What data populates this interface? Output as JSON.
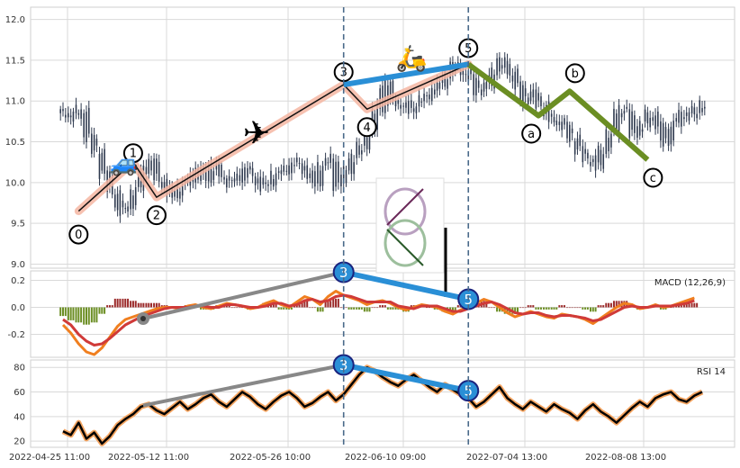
{
  "chart_data": {
    "type": "line",
    "x_tick_labels": [
      "2022-04-25 11:00",
      "2022-05-12 11:00",
      "2022-05-26 10:00",
      "2022-06-10 09:00",
      "2022-07-04 13:00",
      "2022-08-08 13:00"
    ],
    "panels": [
      {
        "name": "price",
        "chart_kind": "candlestick",
        "ylim": [
          8.95,
          12.15
        ],
        "y_ticks": [
          "9.0",
          "9.5",
          "10.0",
          "10.5",
          "11.0",
          "11.5",
          "12.0"
        ],
        "close_series": [
          10.85,
          10.8,
          10.9,
          10.55,
          10.4,
          10.1,
          9.9,
          9.65,
          9.72,
          9.9,
          10.15,
          10.25,
          10.05,
          9.9,
          9.85,
          9.95,
          10.05,
          10.15,
          10.05,
          10.2,
          10.1,
          10.0,
          10.05,
          10.15,
          10.1,
          9.95,
          10.0,
          10.1,
          10.15,
          10.2,
          10.25,
          10.1,
          10.0,
          10.2,
          10.3,
          9.95,
          10.15,
          10.3,
          10.45,
          10.6,
          10.9,
          11.2,
          11.0,
          10.95,
          10.9,
          10.95,
          11.05,
          11.1,
          11.2,
          11.3,
          11.45,
          11.35,
          11.3,
          11.1,
          11.2,
          11.35,
          11.5,
          11.35,
          11.2,
          11.0,
          11.1,
          10.95,
          10.8,
          10.75,
          10.7,
          10.55,
          10.4,
          10.3,
          10.2,
          10.4,
          10.6,
          10.9,
          10.85,
          10.6,
          10.7,
          10.85,
          10.7,
          10.5,
          10.7,
          10.85,
          10.8,
          10.9,
          10.95
        ]
      },
      {
        "name": "MACD (12,26,9)",
        "label": "MACD (12,26,9)",
        "ylim": [
          -0.37,
          0.27
        ],
        "y_ticks": [
          "0.2",
          "0.0",
          "-0.2"
        ],
        "macd": [
          -0.13,
          -0.19,
          -0.27,
          -0.33,
          -0.35,
          -0.3,
          -0.22,
          -0.14,
          -0.09,
          -0.07,
          -0.05,
          -0.03,
          -0.01,
          0.0,
          0.0,
          -0.01,
          0.01,
          0.02,
          0.0,
          -0.01,
          0.01,
          0.03,
          0.02,
          0.01,
          -0.01,
          0.0,
          0.03,
          0.05,
          0.02,
          0.0,
          0.04,
          0.08,
          0.06,
          0.02,
          0.08,
          0.12,
          0.09,
          0.07,
          0.05,
          0.02,
          0.04,
          0.05,
          0.03,
          0.0,
          -0.02,
          0.0,
          0.02,
          0.01,
          0.0,
          -0.03,
          -0.05,
          -0.02,
          0.01,
          0.03,
          0.06,
          0.04,
          0.0,
          -0.04,
          -0.07,
          -0.05,
          -0.03,
          -0.05,
          -0.07,
          -0.08,
          -0.05,
          -0.06,
          -0.07,
          -0.09,
          -0.12,
          -0.08,
          -0.04,
          0.0,
          0.03,
          0.02,
          -0.01,
          0.0,
          0.02,
          0.0,
          0.01,
          0.03,
          0.05,
          0.07
        ],
        "signal": [
          -0.09,
          -0.13,
          -0.2,
          -0.25,
          -0.28,
          -0.27,
          -0.23,
          -0.18,
          -0.13,
          -0.1,
          -0.07,
          -0.05,
          -0.03,
          -0.01,
          0.0,
          0.0,
          0.0,
          0.01,
          0.01,
          0.0,
          0.0,
          0.02,
          0.02,
          0.01,
          0.0,
          0.0,
          0.01,
          0.03,
          0.03,
          0.01,
          0.02,
          0.05,
          0.06,
          0.04,
          0.05,
          0.08,
          0.09,
          0.08,
          0.06,
          0.04,
          0.04,
          0.04,
          0.04,
          0.01,
          0.0,
          -0.01,
          0.01,
          0.01,
          0.01,
          -0.01,
          -0.03,
          -0.03,
          -0.01,
          0.01,
          0.03,
          0.04,
          0.02,
          -0.01,
          -0.04,
          -0.05,
          -0.04,
          -0.04,
          -0.06,
          -0.07,
          -0.06,
          -0.06,
          -0.07,
          -0.08,
          -0.1,
          -0.09,
          -0.06,
          -0.03,
          0.0,
          0.01,
          0.0,
          0.0,
          0.01,
          0.01,
          0.01,
          0.02,
          0.03,
          0.05
        ]
      },
      {
        "name": "RSI 14",
        "label": "RSI 14",
        "ylim": [
          15,
          86
        ],
        "y_ticks": [
          "80",
          "60",
          "40",
          "20"
        ],
        "rsi": [
          28,
          25,
          35,
          22,
          27,
          18,
          24,
          33,
          38,
          42,
          48,
          50,
          45,
          42,
          47,
          52,
          46,
          50,
          55,
          58,
          52,
          48,
          54,
          60,
          56,
          50,
          46,
          52,
          57,
          60,
          55,
          48,
          51,
          56,
          60,
          53,
          58,
          66,
          74,
          80,
          77,
          72,
          68,
          65,
          70,
          74,
          69,
          64,
          60,
          66,
          62,
          58,
          55,
          48,
          52,
          58,
          64,
          55,
          50,
          46,
          52,
          48,
          44,
          50,
          46,
          43,
          38,
          45,
          50,
          44,
          40,
          35,
          41,
          47,
          52,
          48,
          55,
          58,
          60,
          54,
          52,
          57,
          60
        ]
      },
      {
        "name": "waves",
        "impulse_labels": [
          "0",
          "1",
          "2",
          "3",
          "4",
          "5"
        ],
        "impulse_points": [
          [
            2,
            9.65
          ],
          [
            9,
            10.25
          ],
          [
            12,
            9.82
          ],
          [
            36,
            11.2
          ],
          [
            39,
            10.9
          ],
          [
            52,
            11.45
          ]
        ],
        "correction_labels": [
          "a",
          "b",
          "c"
        ],
        "correction_points": [
          [
            61,
            10.82
          ],
          [
            65,
            11.12
          ],
          [
            75,
            10.28
          ]
        ],
        "divergence_labels": [
          "3",
          "5"
        ]
      }
    ],
    "dashed_lines_at_index": [
      36,
      52
    ],
    "title": "",
    "xlabel": "",
    "ylabel": ""
  },
  "colors": {
    "up": "#2f3a4f",
    "macd": "#f07f1f",
    "signal": "#d03a38",
    "hist_pos": "#9b2a2a",
    "hist_neg": "#6b8e23",
    "impulse": "#f4b6a2",
    "correction": "#6b8e23",
    "divergence": "#2a8fd6",
    "rsi": "#000000",
    "rsi_glow": "#f4a460",
    "dashed": "#4a6a8a",
    "grid": "#d9d9d9"
  },
  "icons": [
    "car-icon",
    "airplane-icon",
    "scooter-icon",
    "logo-icon"
  ]
}
